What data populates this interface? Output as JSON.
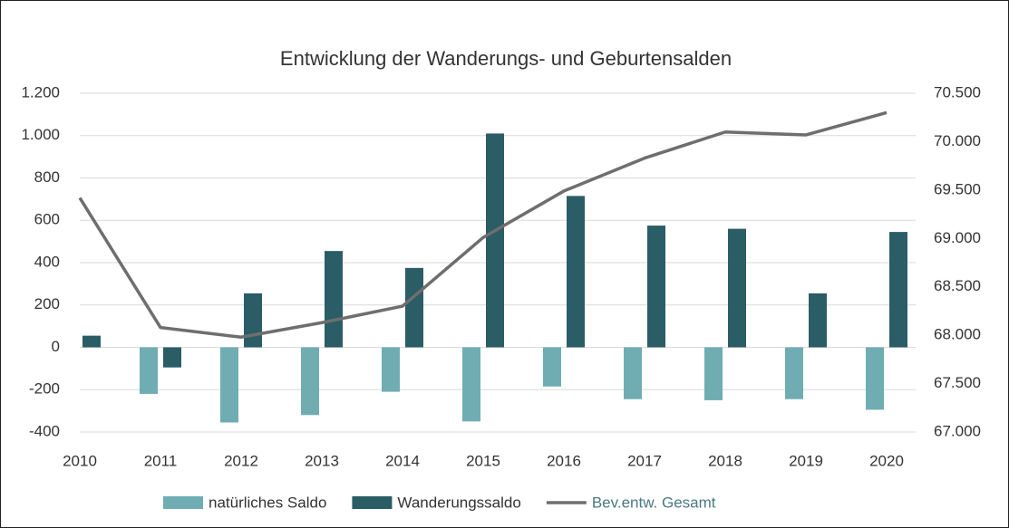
{
  "chart_data": {
    "type": "bar-line",
    "title": "Entwicklung der Wanderungs- und Geburtensalden",
    "categories": [
      "2010",
      "2011",
      "2012",
      "2013",
      "2014",
      "2015",
      "2016",
      "2017",
      "2018",
      "2019",
      "2020"
    ],
    "series": [
      {
        "name": "natürliches Saldo",
        "type": "bar",
        "color": "#6fadb3",
        "values": [
          null,
          -220,
          -355,
          -320,
          -210,
          -350,
          -185,
          -245,
          -250,
          -245,
          -295
        ]
      },
      {
        "name": "Wanderungssaldo",
        "type": "bar",
        "color": "#2a5d66",
        "values": [
          55,
          -95,
          255,
          455,
          375,
          1010,
          715,
          575,
          560,
          255,
          545
        ]
      },
      {
        "name": "Bev.entw. Gesamt",
        "type": "line",
        "axis": "y2",
        "color": "#6e6e6e",
        "values": [
          69420,
          68080,
          67980,
          68130,
          68300,
          69010,
          69490,
          69830,
          70100,
          70070,
          70300
        ]
      }
    ],
    "ylim": [
      -400,
      1200
    ],
    "yticks": [
      {
        "value": 1200,
        "label": "1.200"
      },
      {
        "value": 1000,
        "label": "1.000"
      },
      800,
      600,
      400,
      200,
      0,
      -200,
      -400
    ],
    "y2lim": [
      67000,
      70500
    ],
    "y2ticks": [
      {
        "value": 70500,
        "label": "70.500"
      },
      {
        "value": 70000,
        "label": "70.000"
      },
      {
        "value": 69500,
        "label": "69.500"
      },
      {
        "value": 69000,
        "label": "69.000"
      },
      {
        "value": 68500,
        "label": "68.500"
      },
      {
        "value": 68000,
        "label": "68.000"
      },
      {
        "value": 67500,
        "label": "67.500"
      },
      {
        "value": 67000,
        "label": "67.000"
      }
    ],
    "grid": true,
    "legend": "bottom"
  }
}
